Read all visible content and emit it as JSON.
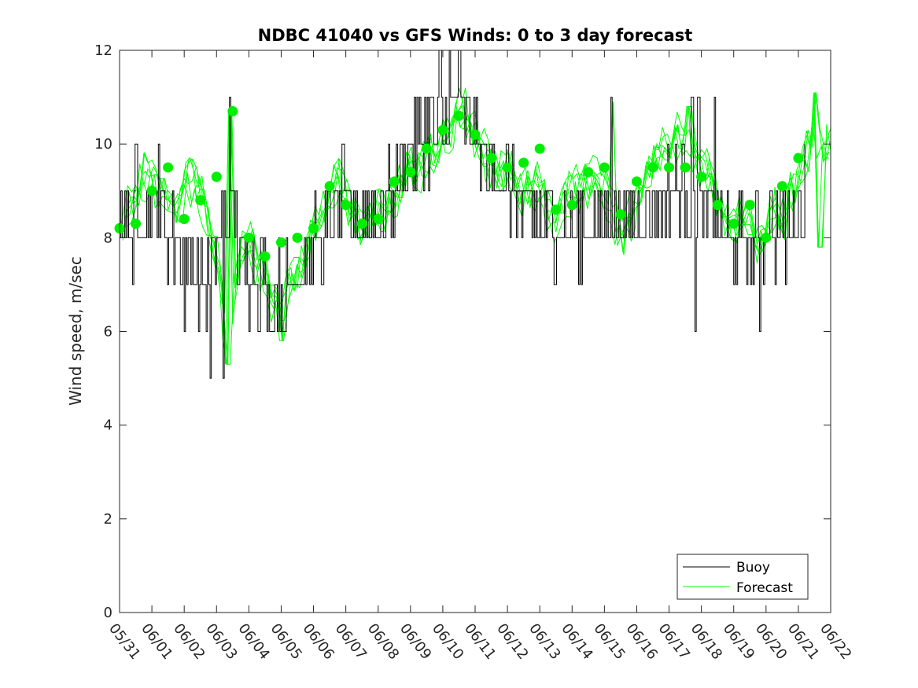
{
  "chart_data": {
    "type": "line",
    "title": "NDBC 41040 vs GFS Winds: 0 to 3 day forecast",
    "xlabel": "",
    "ylabel": "Wind speed, m/sec",
    "xlim": [
      "05/31",
      "06/22"
    ],
    "ylim": [
      0,
      12
    ],
    "x_ticks": [
      "05/31",
      "06/01",
      "06/02",
      "06/03",
      "06/04",
      "06/05",
      "06/06",
      "06/07",
      "06/08",
      "06/09",
      "06/10",
      "06/11",
      "06/12",
      "06/13",
      "06/14",
      "06/15",
      "06/16",
      "06/17",
      "06/18",
      "06/19",
      "06/20",
      "06/21",
      "06/22"
    ],
    "y_ticks": [
      0,
      2,
      4,
      6,
      8,
      10,
      12
    ],
    "grid": false,
    "legend": {
      "placement": "bottom-right",
      "entries": [
        "Buoy",
        "Forecast"
      ]
    },
    "colors": {
      "buoy": "#000000",
      "forecast": "#00ff00",
      "points": "#00ee00",
      "axes": "#262626"
    },
    "series": [
      {
        "name": "Buoy",
        "color": "#000000",
        "trend": [
          [
            0,
            8.5
          ],
          [
            0.3,
            8.3
          ],
          [
            0.7,
            8.5
          ],
          [
            1.0,
            8.6
          ],
          [
            1.3,
            8.4
          ],
          [
            1.6,
            8.0
          ],
          [
            2.0,
            7.7
          ],
          [
            2.3,
            7.3
          ],
          [
            2.6,
            7.0
          ],
          [
            2.9,
            7.4
          ],
          [
            3.2,
            8.2
          ],
          [
            3.4,
            8.6
          ],
          [
            3.6,
            8.1
          ],
          [
            3.9,
            7.6
          ],
          [
            4.2,
            7.3
          ],
          [
            4.5,
            7.0
          ],
          [
            4.8,
            6.7
          ],
          [
            5.2,
            7.1
          ],
          [
            5.6,
            7.6
          ],
          [
            6.0,
            7.9
          ],
          [
            6.5,
            8.1
          ],
          [
            7.0,
            8.4
          ],
          [
            7.5,
            8.5
          ],
          [
            8.0,
            8.6
          ],
          [
            8.5,
            9.0
          ],
          [
            9.0,
            9.7
          ],
          [
            9.5,
            10.2
          ],
          [
            10.0,
            10.4
          ],
          [
            10.4,
            10.6
          ],
          [
            10.7,
            10.4
          ],
          [
            11.0,
            10.0
          ],
          [
            11.5,
            9.5
          ],
          [
            12.0,
            9.0
          ],
          [
            12.5,
            8.6
          ],
          [
            13.0,
            8.3
          ],
          [
            13.5,
            8.2
          ],
          [
            14.0,
            8.1
          ],
          [
            14.5,
            8.2
          ],
          [
            15.0,
            8.3
          ],
          [
            15.5,
            8.4
          ],
          [
            16.0,
            8.5
          ],
          [
            16.5,
            8.7
          ],
          [
            17.0,
            9.0
          ],
          [
            17.5,
            9.1
          ],
          [
            18.0,
            8.7
          ],
          [
            18.5,
            8.3
          ],
          [
            19.0,
            8.0
          ],
          [
            19.5,
            7.7
          ],
          [
            20.0,
            8.0
          ],
          [
            20.5,
            8.4
          ],
          [
            21.0,
            8.6
          ]
        ],
        "spikes": [
          [
            0.4,
            7.0
          ],
          [
            0.5,
            10.0
          ],
          [
            1.2,
            10.0
          ],
          [
            2.0,
            6.0
          ],
          [
            2.8,
            5.0
          ],
          [
            3.2,
            5.0
          ],
          [
            3.4,
            11.0
          ],
          [
            4.0,
            6.0
          ],
          [
            4.7,
            6.0
          ],
          [
            5.1,
            6.0
          ],
          [
            6.9,
            10.0
          ],
          [
            9.2,
            11.0
          ],
          [
            9.9,
            12.0
          ],
          [
            10.2,
            12.0
          ],
          [
            10.5,
            12.0
          ],
          [
            14.2,
            7.0
          ],
          [
            15.2,
            11.0
          ],
          [
            17.7,
            11.0
          ],
          [
            17.9,
            11.0
          ],
          [
            17.8,
            6.0
          ],
          [
            18.4,
            11.0
          ],
          [
            19.8,
            6.0
          ],
          [
            20.6,
            7.0
          ],
          [
            21.2,
            10.0
          ]
        ]
      },
      {
        "name": "Forecast",
        "color": "#00ff00",
        "mean_path": [
          [
            0,
            8.2
          ],
          [
            0.25,
            8.6
          ],
          [
            0.5,
            8.9
          ],
          [
            0.75,
            9.4
          ],
          [
            1.0,
            9.3
          ],
          [
            1.25,
            9.1
          ],
          [
            1.5,
            8.8
          ],
          [
            1.75,
            8.7
          ],
          [
            2.0,
            9.1
          ],
          [
            2.25,
            9.3
          ],
          [
            2.5,
            9.0
          ],
          [
            2.75,
            8.5
          ],
          [
            3.0,
            7.7
          ],
          [
            3.25,
            6.1
          ],
          [
            3.5,
            6.6
          ],
          [
            3.75,
            7.6
          ],
          [
            4.0,
            7.9
          ],
          [
            4.25,
            7.5
          ],
          [
            4.5,
            7.3
          ],
          [
            4.75,
            6.6
          ],
          [
            5.0,
            6.5
          ],
          [
            5.25,
            7.0
          ],
          [
            5.5,
            7.3
          ],
          [
            5.75,
            7.6
          ],
          [
            6.0,
            8.1
          ],
          [
            6.25,
            8.5
          ],
          [
            6.5,
            8.9
          ],
          [
            6.75,
            9.3
          ],
          [
            7.0,
            9.0
          ],
          [
            7.25,
            8.5
          ],
          [
            7.5,
            8.2
          ],
          [
            7.75,
            8.5
          ],
          [
            8.0,
            8.7
          ],
          [
            8.25,
            8.6
          ],
          [
            8.5,
            8.9
          ],
          [
            8.75,
            9.3
          ],
          [
            9.0,
            9.6
          ],
          [
            9.25,
            9.5
          ],
          [
            9.5,
            9.7
          ],
          [
            9.75,
            9.8
          ],
          [
            10.0,
            10.1
          ],
          [
            10.25,
            10.3
          ],
          [
            10.5,
            10.7
          ],
          [
            10.75,
            10.4
          ],
          [
            11.0,
            10.2
          ],
          [
            11.25,
            9.9
          ],
          [
            11.5,
            9.6
          ],
          [
            11.75,
            9.3
          ],
          [
            12.0,
            9.5
          ],
          [
            12.25,
            9.3
          ],
          [
            12.5,
            9.0
          ],
          [
            12.75,
            9.2
          ],
          [
            13.0,
            9.1
          ],
          [
            13.25,
            8.6
          ],
          [
            13.5,
            8.5
          ],
          [
            13.75,
            8.9
          ],
          [
            14.0,
            9.0
          ],
          [
            14.25,
            9.1
          ],
          [
            14.5,
            9.2
          ],
          [
            14.75,
            9.5
          ],
          [
            15.0,
            9.1
          ],
          [
            15.25,
            8.6
          ],
          [
            15.5,
            8.0
          ],
          [
            15.75,
            8.4
          ],
          [
            16.0,
            8.9
          ],
          [
            16.25,
            9.2
          ],
          [
            16.5,
            9.6
          ],
          [
            16.75,
            9.9
          ],
          [
            17.0,
            10.0
          ],
          [
            17.25,
            10.2
          ],
          [
            17.5,
            10.1
          ],
          [
            17.75,
            9.8
          ],
          [
            18.0,
            9.6
          ],
          [
            18.25,
            9.3
          ],
          [
            18.5,
            8.9
          ],
          [
            18.75,
            8.5
          ],
          [
            19.0,
            8.2
          ],
          [
            19.25,
            8.6
          ],
          [
            19.5,
            8.3
          ],
          [
            19.75,
            7.8
          ],
          [
            20.0,
            8.2
          ],
          [
            20.25,
            8.7
          ],
          [
            20.5,
            8.4
          ],
          [
            20.75,
            8.9
          ],
          [
            21.0,
            9.3
          ],
          [
            21.25,
            9.8
          ],
          [
            21.5,
            10.4
          ],
          [
            21.75,
            9.9
          ],
          [
            22.0,
            10.1
          ]
        ],
        "peaks": [
          [
            3.4,
            10.7
          ],
          [
            3.35,
            5.3
          ],
          [
            5.0,
            5.8
          ],
          [
            10.6,
            11.2
          ],
          [
            15.2,
            10.9
          ],
          [
            17.6,
            10.8
          ],
          [
            21.5,
            11.1
          ],
          [
            21.7,
            7.8
          ]
        ]
      }
    ],
    "forecast_points": {
      "x": [
        0,
        0.5,
        1.0,
        1.5,
        2.0,
        2.5,
        3.0,
        3.5,
        4.0,
        4.5,
        5.0,
        5.5,
        6.0,
        6.5,
        7.0,
        7.5,
        8.0,
        8.5,
        9.0,
        9.5,
        10.0,
        10.5,
        11.0,
        11.5,
        12.0,
        12.5,
        13.0,
        13.5,
        14.0,
        14.5,
        15.0,
        15.5,
        16.0,
        16.5,
        17.0,
        17.5,
        18.0,
        18.5,
        19.0,
        19.5,
        20.0,
        20.5,
        21.0
      ],
      "y": [
        8.2,
        8.3,
        9.0,
        9.5,
        8.4,
        8.8,
        9.3,
        10.7,
        8.0,
        7.6,
        7.9,
        8.0,
        8.2,
        9.1,
        8.7,
        8.3,
        8.4,
        9.2,
        9.4,
        9.9,
        10.3,
        10.6,
        10.2,
        9.7,
        9.5,
        9.6,
        9.9,
        8.6,
        8.7,
        9.4,
        9.5,
        8.5,
        9.2,
        9.5,
        9.5,
        9.5,
        9.3,
        8.7,
        8.3,
        8.7,
        8.0,
        9.1,
        9.7
      ]
    }
  }
}
